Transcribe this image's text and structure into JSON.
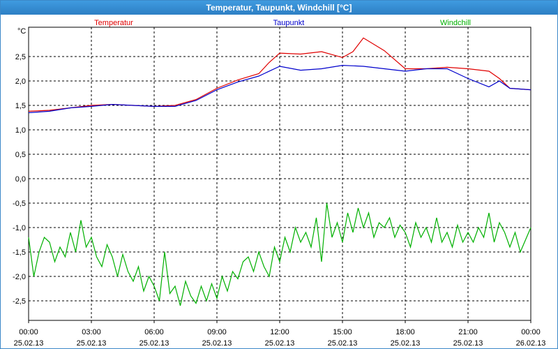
{
  "window": {
    "title": "Temperatur, Taupunkt, Windchill [°C]"
  },
  "chart_data": {
    "type": "line",
    "title": "Temperatur, Taupunkt, Windchill [°C]",
    "ylabel": "°C",
    "ylim": [
      -2.9,
      3.1
    ],
    "y_ticks": [
      "2,5",
      "2,0",
      "1,5",
      "1,0",
      "0,5",
      "0,0",
      "-0,5",
      "-1,0",
      "-1,5",
      "-2,0",
      "-2,5"
    ],
    "y_tick_values": [
      2.5,
      2.0,
      1.5,
      1.0,
      0.5,
      0.0,
      -0.5,
      -1.0,
      -1.5,
      -2.0,
      -2.5
    ],
    "xlim_hours": [
      0,
      24
    ],
    "x_ticks": [
      {
        "time": "00:00",
        "date": "25.02.13"
      },
      {
        "time": "03:00",
        "date": "25.02.13"
      },
      {
        "time": "06:00",
        "date": "25.02.13"
      },
      {
        "time": "09:00",
        "date": "25.02.13"
      },
      {
        "time": "12:00",
        "date": "25.02.13"
      },
      {
        "time": "15:00",
        "date": "25.02.13"
      },
      {
        "time": "18:00",
        "date": "25.02.13"
      },
      {
        "time": "21:00",
        "date": "25.02.13"
      },
      {
        "time": "00:00",
        "date": "26.02.13"
      }
    ],
    "grid": true,
    "legend_position": "top",
    "series": [
      {
        "name": "Temperatur",
        "color": "#e00000",
        "x": [
          0,
          1,
          2,
          3,
          4,
          5,
          6,
          7,
          8,
          9,
          10,
          11,
          11.5,
          12,
          13,
          14,
          15,
          15.5,
          16,
          17,
          18,
          19,
          20,
          21,
          22,
          22.5,
          23,
          24
        ],
        "y": [
          1.38,
          1.4,
          1.45,
          1.5,
          1.52,
          1.5,
          1.48,
          1.5,
          1.62,
          1.85,
          2.02,
          2.15,
          2.38,
          2.57,
          2.55,
          2.6,
          2.48,
          2.6,
          2.88,
          2.62,
          2.25,
          2.25,
          2.28,
          2.25,
          2.2,
          2.05,
          1.85,
          1.82
        ]
      },
      {
        "name": "Taupunkt",
        "color": "#0000cc",
        "x": [
          0,
          1,
          2,
          3,
          4,
          5,
          6,
          7,
          8,
          9,
          10,
          11,
          12,
          13,
          14,
          15,
          16,
          17,
          18,
          19,
          20,
          21,
          22,
          22.5,
          23,
          24
        ],
        "y": [
          1.35,
          1.38,
          1.45,
          1.48,
          1.52,
          1.5,
          1.48,
          1.48,
          1.6,
          1.82,
          1.98,
          2.1,
          2.3,
          2.22,
          2.25,
          2.32,
          2.3,
          2.25,
          2.2,
          2.25,
          2.25,
          2.05,
          1.88,
          2.0,
          1.85,
          1.82
        ]
      },
      {
        "name": "Windchill",
        "color": "#00b000",
        "x": [
          0,
          0.25,
          0.5,
          0.75,
          1,
          1.25,
          1.5,
          1.75,
          2,
          2.25,
          2.5,
          2.75,
          3,
          3.25,
          3.5,
          3.75,
          4,
          4.25,
          4.5,
          4.75,
          5,
          5.25,
          5.5,
          5.75,
          6,
          6.25,
          6.5,
          6.75,
          7,
          7.25,
          7.5,
          7.75,
          8,
          8.25,
          8.5,
          8.75,
          9,
          9.25,
          9.5,
          9.75,
          10,
          10.25,
          10.5,
          10.75,
          11,
          11.25,
          11.5,
          11.75,
          12,
          12.25,
          12.5,
          12.75,
          13,
          13.25,
          13.5,
          13.75,
          14,
          14.25,
          14.5,
          14.75,
          15,
          15.25,
          15.5,
          15.75,
          16,
          16.25,
          16.5,
          16.75,
          17,
          17.25,
          17.5,
          17.75,
          18,
          18.25,
          18.5,
          18.75,
          19,
          19.25,
          19.5,
          19.75,
          20,
          20.25,
          20.5,
          20.75,
          21,
          21.25,
          21.5,
          21.75,
          22,
          22.25,
          22.5,
          22.75,
          23,
          23.25,
          23.5,
          23.75,
          24
        ],
        "y": [
          -1.2,
          -2.0,
          -1.5,
          -1.2,
          -1.3,
          -1.7,
          -1.4,
          -1.6,
          -1.1,
          -1.5,
          -0.85,
          -1.4,
          -1.2,
          -1.6,
          -1.8,
          -1.35,
          -1.6,
          -2.0,
          -1.55,
          -1.9,
          -2.1,
          -1.8,
          -2.3,
          -2.0,
          -2.2,
          -2.5,
          -1.5,
          -2.35,
          -2.2,
          -2.6,
          -2.1,
          -2.4,
          -2.55,
          -2.2,
          -2.5,
          -2.15,
          -2.45,
          -2.0,
          -2.3,
          -1.9,
          -2.05,
          -1.7,
          -1.6,
          -1.9,
          -1.5,
          -1.8,
          -2.0,
          -1.4,
          -1.7,
          -1.2,
          -1.5,
          -1.0,
          -1.3,
          -1.1,
          -1.4,
          -0.8,
          -1.7,
          -0.5,
          -1.2,
          -0.9,
          -1.3,
          -0.7,
          -1.1,
          -0.6,
          -1.0,
          -0.7,
          -1.2,
          -0.9,
          -1.0,
          -0.8,
          -1.2,
          -0.95,
          -1.1,
          -1.4,
          -0.9,
          -1.2,
          -1.0,
          -1.3,
          -0.8,
          -1.3,
          -1.1,
          -1.4,
          -0.95,
          -1.3,
          -1.1,
          -1.3,
          -1.0,
          -1.2,
          -0.7,
          -1.3,
          -0.9,
          -1.1,
          -1.4,
          -1.1,
          -1.5,
          -1.25,
          -1.0
        ]
      }
    ]
  }
}
